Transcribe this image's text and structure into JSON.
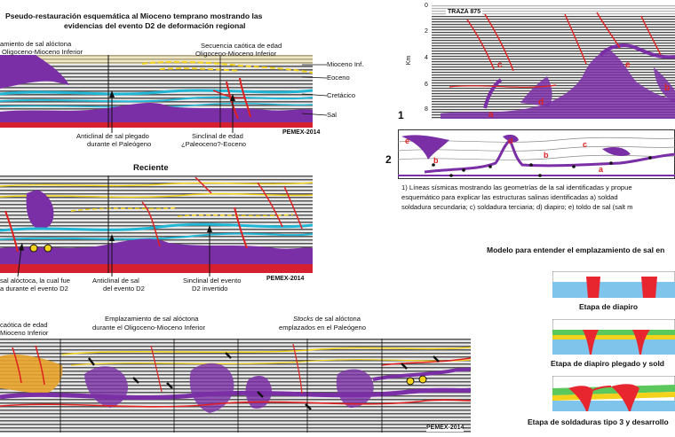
{
  "title": {
    "line1": "Pseudo-restauración esquemática al Mioceno temprano mostrando las",
    "line2": "evidencias del evento D2 de deformación regional"
  },
  "section_top": {
    "labels": {
      "left_a": "amiento de sal alóctona",
      "left_b": "Oligoceno-Mioceno Inferior",
      "chaotic_a": "Secuencia caótica de edad",
      "chaotic_b": "Oligoceno-Mioceno Inferior",
      "mioceno": "Mioceno Inf.",
      "eoceno": "Eoceno",
      "cretacico": "Cretácico",
      "sal": "Sal",
      "anticline_a": "Anticlinal de sal plegado",
      "anticline_b": "durante el Paleógeno",
      "syncline_a": "Sinclinal de edad",
      "syncline_b": "¿Paleoceno?-Eoceno",
      "credit": "PEMEX-2014"
    }
  },
  "section_mid": {
    "heading": "Reciente",
    "labels": {
      "left_a": "sal alóctoca, la cual fue",
      "left_b": "a durante el evento D2",
      "anticline_a": "Anticlinal de sal",
      "anticline_b": "del evento D2",
      "syncline_a": "Sinclinal del evento",
      "syncline_b": "D2 invertido",
      "credit": "PEMEX-2014"
    }
  },
  "section_bottom": {
    "labels": {
      "left_a": "caótica de edad",
      "left_b": "Mioceno Inferior",
      "emplacement_a": "Emplazamiento de sal alóctona",
      "emplacement_b": "durante el Oligoceno-Mioceno Inferior",
      "stocks_a_italic": "Stocks",
      "stocks_a_rest": " de sal alóctona",
      "stocks_b": "emplazados en el Paleógeno",
      "credit": "PEMEX-2014"
    }
  },
  "seismic_right": {
    "trace_label": "TRAZA 875",
    "axis_label": "Km",
    "depth_ticks": [
      "0",
      "2",
      "4",
      "6",
      "8"
    ],
    "panel_number_1": "1",
    "panel_number_2": "2",
    "structure_letters_top": [
      "a",
      "b",
      "c",
      "d",
      "e"
    ],
    "structure_letters_sketch": [
      "a",
      "b",
      "c",
      "d",
      "e"
    ],
    "caption_line1": "1) Líneas sísmicas mostrando las geometrías de la sal identificadas y propue",
    "caption_line2": "esquemático para explicar las estructuras salinas identificadas a) soldad",
    "caption_line3": "soldadura secundaria; c) soldadura terciaria; d) diapiro; e) toldo de sal (salt m"
  },
  "model": {
    "heading": "Modelo para entender el emplazamiento de sal en",
    "stage1": "Etapa de diapiro",
    "stage2": "Etapa de diapiro plegado y sold",
    "stage3": "Etapa de soldaduras tipo 3 y desarrollo"
  },
  "colors": {
    "salt": "#7b2fa6",
    "layer_cyan": "#22b6d6",
    "fault_red": "#e02020",
    "horizon_yellow": "#f2d21b",
    "base_red": "#d42030",
    "model_blue": "#7fc4ea",
    "model_red": "#e8262f"
  }
}
